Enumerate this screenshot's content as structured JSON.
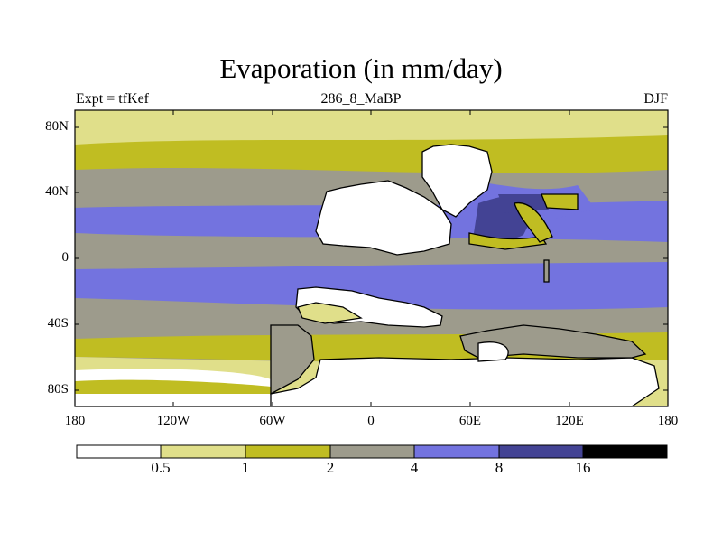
{
  "header": {
    "title": "Evaporation (in mm/day)",
    "left": "Expt = tfKef",
    "center": "286_8_MaBP",
    "right": "DJF"
  },
  "axes": {
    "lat_ticks": [
      "80N",
      "40N",
      "0",
      "40S",
      "80S"
    ],
    "lon_ticks": [
      "180",
      "120W",
      "60W",
      "0",
      "60E",
      "120E",
      "180"
    ]
  },
  "colorbar": {
    "labels": [
      "0.5",
      "1",
      "2",
      "4",
      "8",
      "16"
    ],
    "colors": [
      "#ffffff",
      "#e0df8a",
      "#c0bd22",
      "#9d9b8c",
      "#7373df",
      "#434394",
      "#000000"
    ]
  },
  "map_colors": {
    "land": "#ffffff",
    "coast": "#000000"
  }
}
